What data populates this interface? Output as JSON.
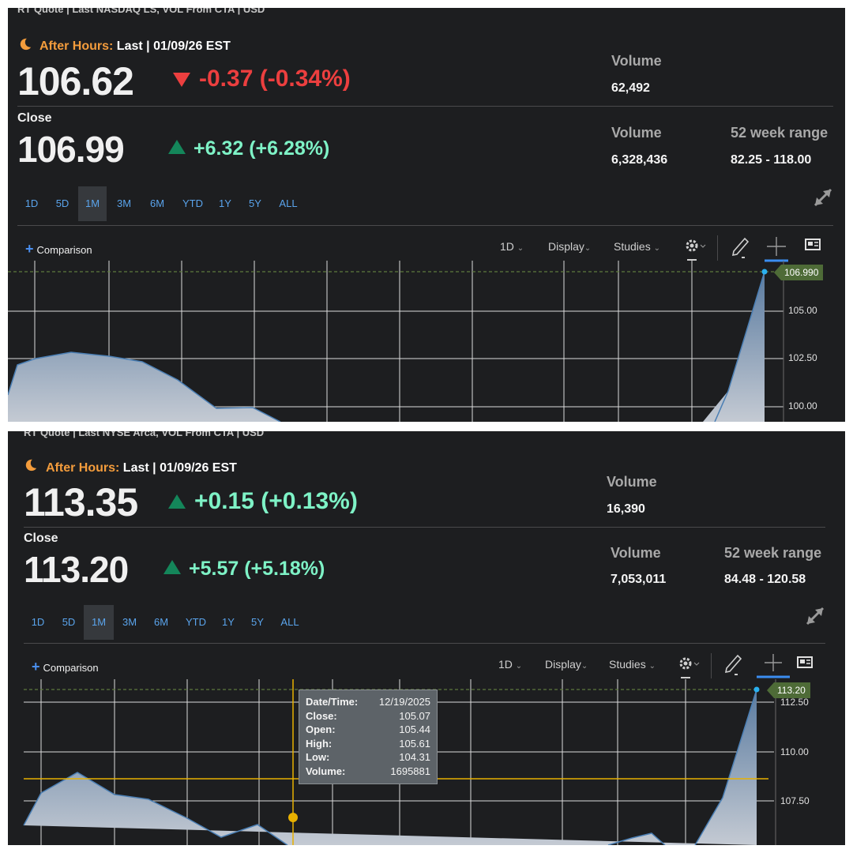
{
  "panels": [
    {
      "source_line": "RT Quote | Last NASDAQ LS, VOL From CTA | USD",
      "after_hours": {
        "label": "After Hours:",
        "rest": "Last | 01/09/26 EST",
        "price": "106.62",
        "change": "-0.37 (-0.34%)",
        "direction": "down",
        "volume_label": "Volume",
        "volume": "62,492"
      },
      "close": {
        "label": "Close",
        "price": "106.99",
        "change": "+6.32 (+6.28%)",
        "direction": "up",
        "volume_label": "Volume",
        "volume": "6,328,436",
        "range_label": "52 week range",
        "range": "82.25 - 118.00"
      },
      "ranges": [
        "1D",
        "5D",
        "1M",
        "3M",
        "6M",
        "YTD",
        "1Y",
        "5Y",
        "ALL"
      ],
      "active_range": "1M",
      "toolbar": {
        "comparison": "Comparison",
        "interval": "1D",
        "display": "Display",
        "studies": "Studies"
      },
      "y_axis": [
        "105.00",
        "102.50",
        "100.00"
      ],
      "last_price_tag": "106.990"
    },
    {
      "source_line": "RT Quote | Last NYSE Arca, VOL From CTA | USD",
      "after_hours": {
        "label": "After Hours:",
        "rest": "Last | 01/09/26 EST",
        "price": "113.35",
        "change": "+0.15 (+0.13%)",
        "direction": "up",
        "volume_label": "Volume",
        "volume": "16,390"
      },
      "close": {
        "label": "Close",
        "price": "113.20",
        "change": "+5.57 (+5.18%)",
        "direction": "up",
        "volume_label": "Volume",
        "volume": "7,053,011",
        "range_label": "52 week range",
        "range": "84.48 - 120.58"
      },
      "ranges": [
        "1D",
        "5D",
        "1M",
        "3M",
        "6M",
        "YTD",
        "1Y",
        "5Y",
        "ALL"
      ],
      "active_range": "1M",
      "toolbar": {
        "comparison": "Comparison",
        "interval": "1D",
        "display": "Display",
        "studies": "Studies"
      },
      "y_axis": [
        "112.50",
        "110.00",
        "107.50"
      ],
      "last_price_tag": "113.20",
      "tooltip": {
        "rows": [
          {
            "key": "Date/Time:",
            "value": "12/19/2025"
          },
          {
            "key": "Close:",
            "value": "105.07"
          },
          {
            "key": "Open:",
            "value": "105.44"
          },
          {
            "key": "High:",
            "value": "105.61"
          },
          {
            "key": "Low:",
            "value": "104.31"
          },
          {
            "key": "Volume:",
            "value": "1695881"
          }
        ]
      }
    }
  ],
  "colors": {
    "background": "#1d1e20",
    "up": "#7ef2c6",
    "down": "#ec3f3f",
    "after_hours": "#f39c3c",
    "link": "#5aa4ec",
    "last_tag": "#4e6b37",
    "crosshair": "#e8b100"
  },
  "icons": [
    "moon-icon",
    "triangle-down-icon",
    "triangle-up-icon",
    "expand-icon",
    "gear-icon",
    "pencil-icon",
    "crosshair-icon",
    "news-icon",
    "plus-icon"
  ]
}
